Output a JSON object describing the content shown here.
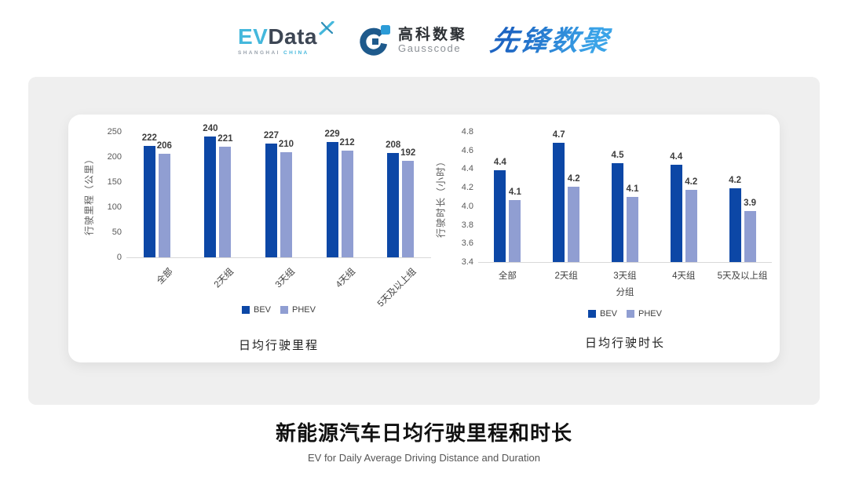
{
  "header": {
    "evdata": {
      "ev_text": "EV",
      "data_text": "Data",
      "sub_left": "SHANGHAI",
      "sub_right": "CHINA"
    },
    "gausscode": {
      "cn": "高科数聚",
      "en": "Gausscode"
    },
    "xianfeng": {
      "text": "先锋数聚"
    }
  },
  "chart_data": [
    {
      "type": "bar",
      "caption": "日均行驶里程",
      "ylabel": "行驶里程（公里）",
      "xlabel": "",
      "categories": [
        "全部",
        "2天组",
        "3天组",
        "4天组",
        "5天及以上组"
      ],
      "ylim": [
        0,
        250
      ],
      "yticks": [
        {
          "value": 0,
          "label": "0"
        },
        {
          "value": 50,
          "label": "50"
        },
        {
          "value": 100,
          "label": "100"
        },
        {
          "value": 150,
          "label": "150"
        },
        {
          "value": 200,
          "label": "200"
        },
        {
          "value": 250,
          "label": "250"
        }
      ],
      "rotate_x_labels": true,
      "grid": false,
      "legend_position": "bottom",
      "series": [
        {
          "name": "BEV",
          "color": "#0C47A6",
          "values": [
            222,
            240,
            227,
            229,
            208
          ],
          "render_values": [
            222,
            240,
            227,
            229,
            208
          ],
          "value_labels": [
            "222",
            "240",
            "227",
            "229",
            "208"
          ]
        },
        {
          "name": "PHEV",
          "color": "#909ED2",
          "values": [
            206,
            221,
            210,
            212,
            192
          ],
          "render_values": [
            206,
            221,
            210,
            212,
            192
          ],
          "value_labels": [
            "206",
            "221",
            "210",
            "212",
            "192"
          ]
        }
      ]
    },
    {
      "type": "bar",
      "caption": "日均行驶时长",
      "ylabel": "行驶时长（小时）",
      "xlabel": "分组",
      "categories": [
        "全部",
        "2天组",
        "3天组",
        "4天组",
        "5天及以上组"
      ],
      "ylim": [
        3.4,
        4.8
      ],
      "yticks": [
        {
          "value": 3.4,
          "label": "3.4"
        },
        {
          "value": 3.6,
          "label": "3.6"
        },
        {
          "value": 3.8,
          "label": "3.8"
        },
        {
          "value": 4.0,
          "label": "4.0"
        },
        {
          "value": 4.2,
          "label": "4.2"
        },
        {
          "value": 4.4,
          "label": "4.4"
        },
        {
          "value": 4.6,
          "label": "4.6"
        },
        {
          "value": 4.8,
          "label": "4.8"
        }
      ],
      "rotate_x_labels": false,
      "grid": false,
      "legend_position": "bottom",
      "series": [
        {
          "name": "BEV",
          "color": "#0C47A6",
          "values": [
            4.4,
            4.7,
            4.5,
            4.4,
            4.2
          ],
          "render_values": [
            4.39,
            4.68,
            4.46,
            4.45,
            4.19
          ],
          "value_labels": [
            "4.4",
            "4.7",
            "4.5",
            "4.4",
            "4.2"
          ]
        },
        {
          "name": "PHEV",
          "color": "#909ED2",
          "values": [
            4.1,
            4.2,
            4.1,
            4.2,
            3.9
          ],
          "render_values": [
            4.07,
            4.21,
            4.1,
            4.18,
            3.95
          ],
          "value_labels": [
            "4.1",
            "4.2",
            "4.1",
            "4.2",
            "3.9"
          ]
        }
      ]
    }
  ],
  "footer": {
    "title": "新能源汽车日均行驶里程和时长",
    "subtitle": "EV for Daily Average Driving Distance and Duration"
  }
}
